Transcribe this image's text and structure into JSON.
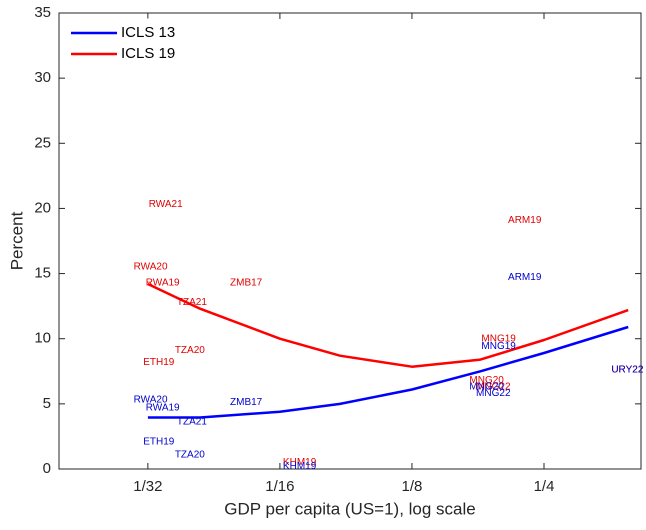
{
  "chart_data": {
    "type": "line",
    "xlabel": "GDP per capita (US=1), log scale",
    "ylabel": "Percent",
    "xscale": "log",
    "xlim": [
      0.0196,
      0.416
    ],
    "ylim": [
      0,
      35
    ],
    "xticks": [
      {
        "value": 0.03125,
        "label": "1/32"
      },
      {
        "value": 0.0625,
        "label": "1/16"
      },
      {
        "value": 0.125,
        "label": "1/8"
      },
      {
        "value": 0.25,
        "label": "1/4"
      }
    ],
    "yticks": [
      0,
      5,
      10,
      15,
      20,
      25,
      30,
      35
    ],
    "legend": "upper left",
    "series": [
      {
        "name": "ICLS 13",
        "color": "#0000ff",
        "x": [
          0.03125,
          0.0411,
          0.0625,
          0.0857,
          0.125,
          0.179,
          0.25,
          0.389
        ],
        "values": [
          3.95,
          3.95,
          4.4,
          5.0,
          6.1,
          7.5,
          8.9,
          10.9
        ]
      },
      {
        "name": "ICLS 19",
        "color": "#ff0000",
        "x": [
          0.03125,
          0.0411,
          0.0625,
          0.0857,
          0.125,
          0.179,
          0.25,
          0.389
        ],
        "values": [
          14.2,
          12.3,
          10.0,
          8.7,
          7.85,
          8.4,
          9.9,
          12.2
        ]
      }
    ],
    "annotations": [
      {
        "color": "#e00000",
        "texts": [
          "RWA21",
          "RWA20",
          "RWA19",
          "ZMB17",
          "TZA21",
          "TZA20",
          "ETH19",
          "ARM19",
          "MNG19",
          "MNG20",
          "MNG22",
          "URY22",
          "KHM19"
        ],
        "x": [
          0.0314,
          0.029,
          0.0309,
          0.0481,
          0.0364,
          0.036,
          0.0305,
          0.207,
          0.18,
          0.169,
          0.175,
          0.356,
          0.0635
        ],
        "y": [
          20.3,
          15.5,
          14.3,
          14.3,
          12.8,
          9.1,
          8.2,
          19.1,
          10.0,
          6.8,
          6.3,
          7.6,
          0.5
        ]
      },
      {
        "color": "#0000cc",
        "texts": [
          "RWA20",
          "RWA19",
          "ZMB17",
          "TZA21",
          "ETH19",
          "TZA20",
          "ARM19",
          "MNG19",
          "MNG20",
          "MNG22",
          "URY22",
          "KHM19"
        ],
        "x": [
          0.029,
          0.0309,
          0.0481,
          0.0364,
          0.0305,
          0.036,
          0.207,
          0.18,
          0.169,
          0.175,
          0.356,
          0.0635
        ],
        "y": [
          5.3,
          4.7,
          5.1,
          3.6,
          2.1,
          1.1,
          14.7,
          9.4,
          6.3,
          5.8,
          7.6,
          0.2
        ]
      }
    ]
  }
}
